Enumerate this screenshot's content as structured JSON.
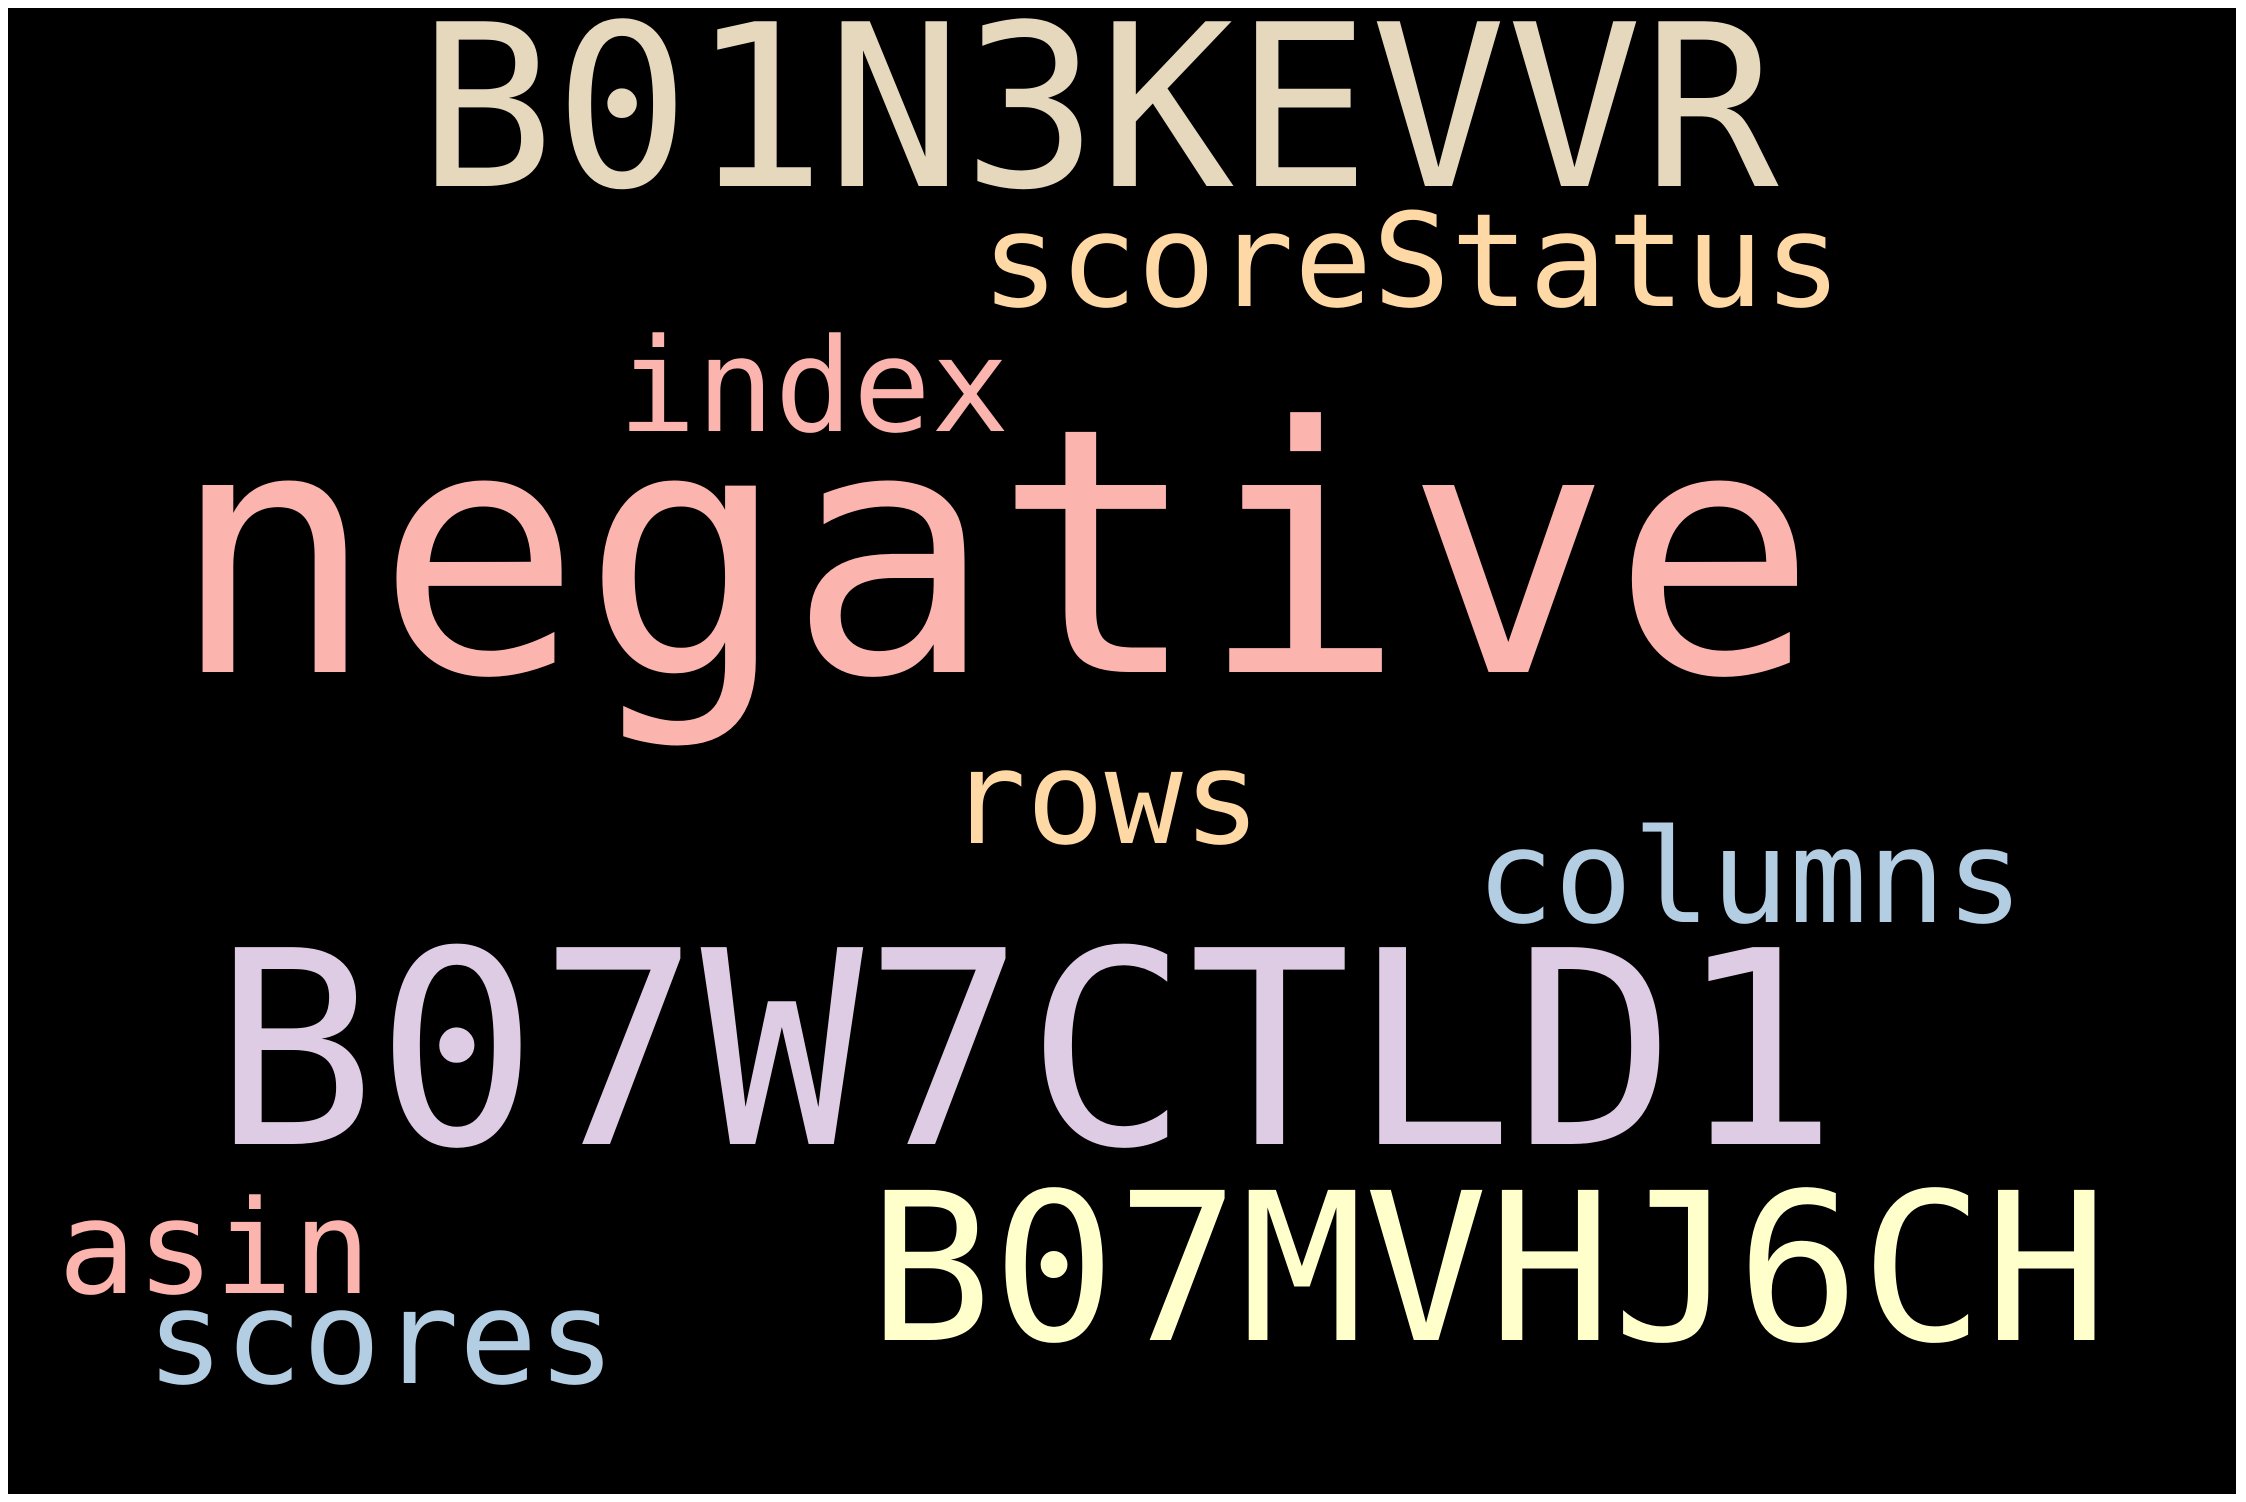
{
  "background_color": "#000000",
  "words": [
    {
      "id": "negative",
      "text": "negative",
      "color": "#FBB4AE"
    },
    {
      "id": "b07w7ctld1",
      "text": "B07W7CTLD1",
      "color": "#DECBE4"
    },
    {
      "id": "b01n3kevvr",
      "text": "B01N3KEVVR",
      "color": "#E5D8BD"
    },
    {
      "id": "b07mvhj6ch",
      "text": "B07MVHJ6CH",
      "color": "#FFFFCC"
    },
    {
      "id": "scorestatus",
      "text": "scoreStatus",
      "color": "#FED9A6"
    },
    {
      "id": "columns",
      "text": "columns",
      "color": "#B3CDE3"
    },
    {
      "id": "index",
      "text": "index",
      "color": "#FBB4AE"
    },
    {
      "id": "rows",
      "text": "rows",
      "color": "#FED9A6"
    },
    {
      "id": "scores",
      "text": "scores",
      "color": "#B3CDE3"
    },
    {
      "id": "asin",
      "text": "asin",
      "color": "#FBB4AE"
    }
  ]
}
